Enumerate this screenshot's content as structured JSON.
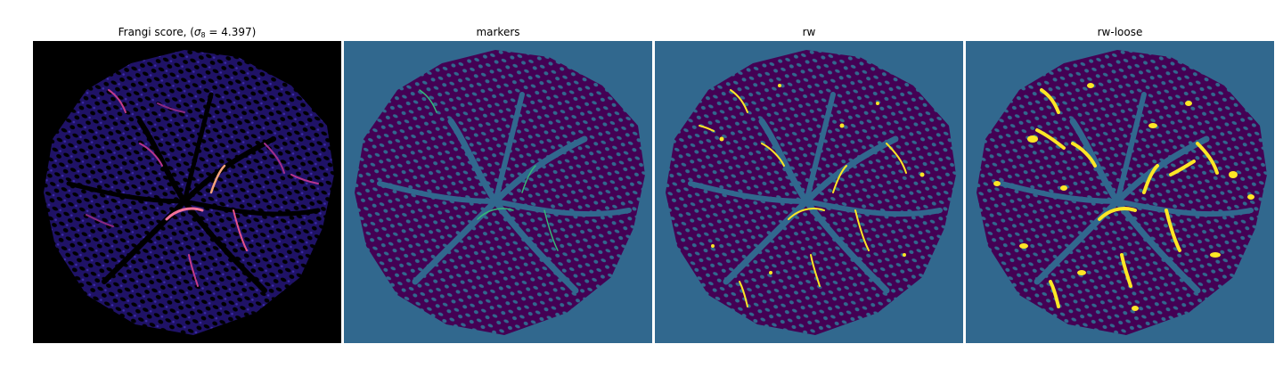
{
  "figure": {
    "panels": [
      {
        "id": "frangi",
        "title_prefix": "Frangi score, (",
        "title_sigma": "σ",
        "title_sub": "8",
        "title_suffix": " = 4.397)",
        "colormap": "magma",
        "background_color": "#000000"
      },
      {
        "id": "markers",
        "title": "markers",
        "colormap": "viridis",
        "background_color": "#31688e"
      },
      {
        "id": "rw",
        "title": "rw",
        "colormap": "viridis",
        "background_color": "#31688e"
      },
      {
        "id": "rw-loose",
        "title": "rw-loose",
        "colormap": "viridis",
        "background_color": "#31688e"
      }
    ],
    "colors": {
      "viridis_dark": "#440154",
      "viridis_mid": "#31688e",
      "viridis_teal": "#35b779",
      "viridis_yellow": "#fde725",
      "magma_bg": "#000000",
      "magma_tissue": "#2a1a7a",
      "magma_hot": "#f3729b"
    }
  }
}
